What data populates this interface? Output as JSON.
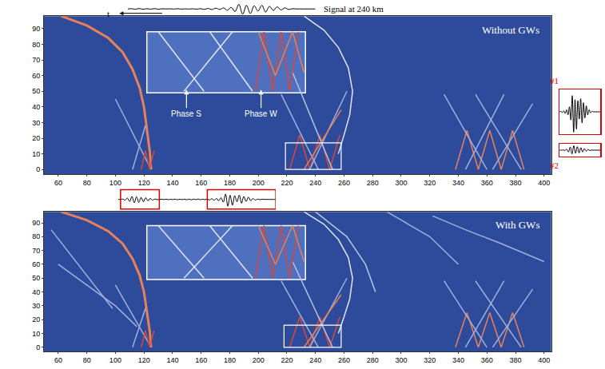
{
  "chart_data": [
    {
      "type": "line",
      "title": "Without GWs",
      "color": "#2d4b9a",
      "grid": false,
      "xlim": [
        50,
        405
      ],
      "ylim": [
        -3,
        98
      ],
      "xticks": [
        60,
        80,
        100,
        120,
        140,
        160,
        180,
        200,
        220,
        240,
        260,
        280,
        300,
        320,
        340,
        360,
        380,
        400
      ],
      "yticks": [
        0,
        10,
        20,
        30,
        40,
        50,
        60,
        70,
        80,
        90
      ],
      "inset": {
        "x": [
          122,
          233
        ],
        "y": [
          49,
          88
        ]
      },
      "zoom_box": {
        "x": [
          219,
          258
        ],
        "y": [
          0,
          17
        ]
      },
      "annotations": [
        {
          "text": "Phase S"
        },
        {
          "text": "Phase W"
        }
      ],
      "series": [
        {
          "x": [
            62,
            80,
            95,
            105,
            112,
            117,
            120,
            122,
            124,
            125
          ],
          "values": [
            98,
            92,
            84,
            75,
            64,
            52,
            40,
            27,
            12,
            0
          ],
          "color": "#e8805a",
          "line_style": "thick"
        },
        {
          "x": [
            232,
            246,
            256,
            263,
            266,
            264,
            260,
            256
          ],
          "values": [
            98,
            89,
            78,
            65,
            50,
            35,
            22,
            10
          ],
          "color": "#dfe5f5"
        },
        {
          "x": [
            100,
            125
          ],
          "values": [
            45,
            0
          ],
          "color": "#9fb0de"
        },
        {
          "x": [
            112,
            121
          ],
          "values": [
            0,
            28
          ],
          "color": "#9fb0de"
        },
        {
          "x": [
            118,
            121,
            124,
            127
          ],
          "values": [
            0,
            12,
            0,
            12
          ],
          "color": "#d24a3a"
        },
        {
          "x": [
            222,
            229,
            236,
            243,
            250,
            257
          ],
          "values": [
            0,
            22,
            0,
            22,
            0,
            22
          ],
          "color": "#d24a3a"
        },
        {
          "x": [
            216,
            242
          ],
          "values": [
            48,
            0
          ],
          "color": "#9fb0de"
        },
        {
          "x": [
            236,
            262
          ],
          "values": [
            0,
            50
          ],
          "color": "#9fb0de"
        },
        {
          "x": [
            224,
            252
          ],
          "values": [
            62,
            0
          ],
          "color": "#b8c4e6"
        },
        {
          "x": [
            232,
            258
          ],
          "values": [
            0,
            38
          ],
          "color": "#e8805a"
        },
        {
          "x": [
            338,
            346,
            354,
            362,
            370,
            378,
            386
          ],
          "values": [
            0,
            25,
            0,
            25,
            0,
            25,
            0
          ],
          "color": "#e8805a"
        },
        {
          "x": [
            330,
            360
          ],
          "values": [
            48,
            0
          ],
          "color": "#9fb0de"
        },
        {
          "x": [
            345,
            372
          ],
          "values": [
            0,
            48
          ],
          "color": "#9fb0de"
        },
        {
          "x": [
            352,
            384
          ],
          "values": [
            48,
            0
          ],
          "color": "#9fb0de"
        },
        {
          "x": [
            364,
            392
          ],
          "values": [
            0,
            42
          ],
          "color": "#9fb0de"
        },
        {
          "x": [
            130,
            162
          ],
          "values": [
            88,
            50
          ],
          "color": "#dfe5f5"
        },
        {
          "x": [
            148,
            182
          ],
          "values": [
            50,
            88
          ],
          "color": "#dfe5f5"
        },
        {
          "x": [
            166,
            196
          ],
          "values": [
            88,
            50
          ],
          "color": "#dfe5f5"
        },
        {
          "x": [
            198,
            204,
            210,
            216,
            222,
            228
          ],
          "values": [
            50,
            88,
            50,
            88,
            50,
            88
          ],
          "color": "#d24a3a"
        },
        {
          "x": [
            200,
            212,
            224,
            232
          ],
          "values": [
            88,
            60,
            88,
            62
          ],
          "color": "#e8805a"
        }
      ]
    },
    {
      "type": "line",
      "title": "With GWs",
      "color": "#2d4b9a",
      "grid": false,
      "xlim": [
        50,
        405
      ],
      "ylim": [
        -3,
        98
      ],
      "xticks": [
        60,
        80,
        100,
        120,
        140,
        160,
        180,
        200,
        220,
        240,
        260,
        280,
        300,
        320,
        340,
        360,
        380,
        400
      ],
      "yticks": [
        0,
        10,
        20,
        30,
        40,
        50,
        60,
        70,
        80,
        90
      ],
      "inset": {
        "x": [
          122,
          233
        ],
        "y": [
          49,
          88
        ]
      },
      "zoom_box": {
        "x": [
          218,
          258
        ],
        "y": [
          0,
          16
        ]
      },
      "series": [
        {
          "x": [
            62,
            80,
            95,
            105,
            112,
            117,
            120,
            122,
            124,
            125
          ],
          "values": [
            98,
            92,
            84,
            75,
            64,
            52,
            40,
            27,
            12,
            0
          ],
          "color": "#e8805a",
          "line_style": "thick"
        },
        {
          "x": [
            232,
            246,
            256,
            263,
            266,
            264,
            260,
            256
          ],
          "values": [
            98,
            89,
            78,
            65,
            50,
            35,
            22,
            10
          ],
          "color": "#dfe5f5"
        },
        {
          "x": [
            100,
            125
          ],
          "values": [
            45,
            0
          ],
          "color": "#9fb0de"
        },
        {
          "x": [
            112,
            121
          ],
          "values": [
            0,
            28
          ],
          "color": "#9fb0de"
        },
        {
          "x": [
            118,
            121,
            124,
            127
          ],
          "values": [
            0,
            12,
            0,
            12
          ],
          "color": "#d24a3a"
        },
        {
          "x": [
            222,
            229,
            236,
            243,
            250,
            257
          ],
          "values": [
            0,
            22,
            0,
            22,
            0,
            22
          ],
          "color": "#d24a3a"
        },
        {
          "x": [
            216,
            242
          ],
          "values": [
            48,
            0
          ],
          "color": "#9fb0de"
        },
        {
          "x": [
            236,
            262
          ],
          "values": [
            0,
            50
          ],
          "color": "#9fb0de"
        },
        {
          "x": [
            224,
            252
          ],
          "values": [
            62,
            0
          ],
          "color": "#b8c4e6"
        },
        {
          "x": [
            232,
            258
          ],
          "values": [
            0,
            38
          ],
          "color": "#e8805a"
        },
        {
          "x": [
            338,
            346,
            354,
            362,
            370,
            378,
            386
          ],
          "values": [
            0,
            25,
            0,
            25,
            0,
            25,
            0
          ],
          "color": "#e8805a"
        },
        {
          "x": [
            330,
            360
          ],
          "values": [
            48,
            0
          ],
          "color": "#9fb0de"
        },
        {
          "x": [
            345,
            372
          ],
          "values": [
            0,
            48
          ],
          "color": "#9fb0de"
        },
        {
          "x": [
            352,
            384
          ],
          "values": [
            48,
            0
          ],
          "color": "#9fb0de"
        },
        {
          "x": [
            364,
            392
          ],
          "values": [
            0,
            42
          ],
          "color": "#9fb0de"
        },
        {
          "x": [
            55,
            70,
            85,
            98
          ],
          "values": [
            85,
            65,
            45,
            28
          ],
          "color": "#9fb0de"
        },
        {
          "x": [
            60,
            80,
            100,
            115
          ],
          "values": [
            60,
            45,
            30,
            15
          ],
          "color": "#9fb0de"
        },
        {
          "x": [
            322,
            345,
            370,
            400
          ],
          "values": [
            95,
            85,
            75,
            62
          ],
          "color": "#9fb0de"
        },
        {
          "x": [
            290,
            320,
            340
          ],
          "values": [
            98,
            80,
            60
          ],
          "color": "#9fb0de"
        },
        {
          "x": [
            240,
            262,
            275,
            282
          ],
          "values": [
            98,
            80,
            60,
            40
          ],
          "color": "#b8c4e6"
        },
        {
          "x": [
            130,
            162
          ],
          "values": [
            88,
            50
          ],
          "color": "#dfe5f5"
        },
        {
          "x": [
            148,
            182
          ],
          "values": [
            50,
            88
          ],
          "color": "#dfe5f5"
        },
        {
          "x": [
            166,
            196
          ],
          "values": [
            88,
            50
          ],
          "color": "#dfe5f5"
        },
        {
          "x": [
            198,
            204,
            210,
            216,
            222,
            228
          ],
          "values": [
            50,
            88,
            50,
            88,
            50,
            88
          ],
          "color": "#d24a3a"
        },
        {
          "x": [
            200,
            212,
            224,
            232
          ],
          "values": [
            88,
            60,
            88,
            62
          ],
          "color": "#e8805a"
        }
      ]
    },
    {
      "type": "line",
      "title": "Signal at 240 km",
      "xlabel": "t",
      "tick_labels": false,
      "color": "#000000",
      "xlim": [
        0,
        49
      ],
      "ylim": [
        -1.1,
        1.1
      ],
      "values": [
        0,
        0.05,
        -0.05,
        0.08,
        -0.06,
        0.05,
        -0.04,
        0.06,
        -0.05,
        0.03,
        0,
        0.02,
        -0.02,
        0.04,
        -0.03,
        0.02,
        -0.02,
        0.03,
        -0.04,
        0.05,
        -0.08,
        0.1,
        -0.12,
        0.15,
        -0.1,
        0.2,
        -0.25,
        0.3,
        -0.5,
        0.9,
        -1,
        0.7,
        -0.9,
        0.6,
        -0.4,
        0.7,
        -0.6,
        0.5,
        -0.3,
        0.4,
        -0.2,
        0.2,
        -0.1,
        0.05,
        0,
        0,
        0,
        0,
        0,
        0
      ]
    },
    {
      "type": "line",
      "tick_labels": false,
      "color": "#000000",
      "xlim": [
        0,
        69
      ],
      "ylim": [
        -1.1,
        1.1
      ],
      "highlight_boxes": [
        {
          "x": [
            1,
            18
          ],
          "color": "#dd0000"
        },
        {
          "x": [
            39,
            69
          ],
          "color": "#dd0000"
        }
      ],
      "values": [
        0,
        0,
        0.05,
        -0.1,
        0.2,
        -0.3,
        0.45,
        -0.5,
        0.4,
        -0.45,
        0.3,
        -0.35,
        0.25,
        -0.2,
        0.15,
        -0.1,
        0.05,
        -0.03,
        0,
        0.02,
        -0.02,
        0.03,
        -0.03,
        0.02,
        -0.02,
        0.04,
        -0.04,
        0.03,
        -0.03,
        0.05,
        -0.05,
        0.04,
        -0.06,
        0.05,
        -0.04,
        0.06,
        -0.05,
        0.04,
        -0.03,
        0.05,
        -0.08,
        0.1,
        -0.12,
        0.15,
        -0.2,
        0.25,
        -0.4,
        0.8,
        -1,
        0.6,
        -0.85,
        0.55,
        -0.35,
        0.65,
        -0.55,
        0.45,
        -0.3,
        0.35,
        -0.2,
        0.15,
        -0.1,
        0.05,
        -0.03,
        0.02,
        0,
        0,
        0,
        0,
        0,
        0
      ]
    },
    {
      "type": "line",
      "title": "#1",
      "tick_labels": false,
      "color": "#000000",
      "xlim": [
        0,
        29
      ],
      "ylim": [
        -1.1,
        1.1
      ],
      "values": [
        0,
        0.02,
        -0.03,
        0.05,
        -0.08,
        0.1,
        -0.15,
        0.25,
        -0.4,
        0.8,
        -1,
        0.6,
        -0.85,
        0.55,
        -0.35,
        0.65,
        -0.55,
        0.45,
        -0.3,
        0.3,
        -0.15,
        0.1,
        -0.05,
        0.03,
        0,
        0,
        0,
        0,
        0,
        0
      ]
    },
    {
      "type": "line",
      "title": "#2",
      "tick_labels": false,
      "color": "#000000",
      "xlim": [
        0,
        23
      ],
      "ylim": [
        -1,
        1
      ],
      "values": [
        0,
        0,
        0.03,
        -0.05,
        0.15,
        -0.3,
        0.5,
        -0.6,
        0.7,
        -0.5,
        0.55,
        -0.45,
        0.4,
        -0.3,
        0.25,
        -0.15,
        0.1,
        -0.05,
        0.02,
        0,
        0,
        0,
        0,
        0
      ]
    }
  ]
}
